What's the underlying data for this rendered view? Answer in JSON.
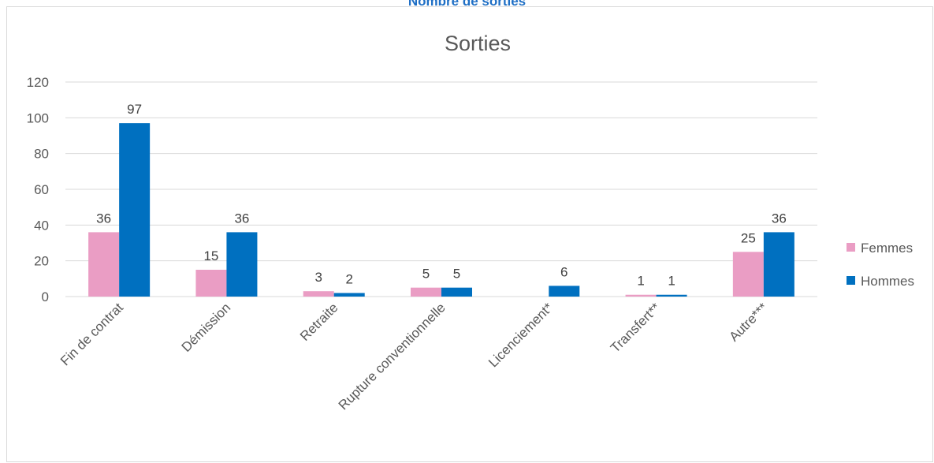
{
  "header": {
    "title": "Nombre de sorties"
  },
  "chart_data": {
    "type": "bar",
    "title": "Sorties",
    "xlabel": "",
    "ylabel": "",
    "ylim": [
      0,
      120
    ],
    "yticks": [
      0,
      20,
      40,
      60,
      80,
      100,
      120
    ],
    "grid": true,
    "legend_position": "right",
    "categories": [
      "Fin de contrat",
      "Démission",
      "Retraite",
      "Rupture conventionnelle",
      "Licenciement*",
      "Transfert**",
      "Autre***"
    ],
    "series": [
      {
        "name": "Femmes",
        "color": "#ea9dc4",
        "values": [
          36,
          15,
          3,
          5,
          0,
          1,
          25
        ],
        "labels": [
          "36",
          "15",
          "3",
          "5",
          "",
          "1",
          "25"
        ]
      },
      {
        "name": "Hommes",
        "color": "#0070c0",
        "values": [
          97,
          36,
          2,
          5,
          6,
          1,
          36
        ],
        "labels": [
          "97",
          "36",
          "2",
          "5",
          "6",
          "1",
          "36"
        ]
      }
    ]
  }
}
